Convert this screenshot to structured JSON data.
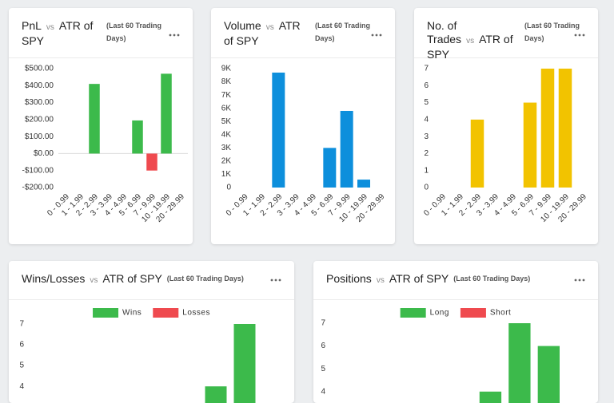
{
  "chart_data": [
    {
      "type": "bar",
      "title": "PnL",
      "vs": "vs",
      "title2": "ATR of SPY",
      "subtitle": "(Last 60 Trading Days)",
      "categories": [
        "0 - 0.99",
        "1 - 1.99",
        "2 - 2.99",
        "3 - 3.99",
        "4 - 4.99",
        "5 - 6.99",
        "7 - 9.99",
        "10 - 19.99",
        "20 - 29.99"
      ],
      "values": [
        0,
        0,
        410,
        0,
        0,
        195,
        -100,
        470,
        0
      ],
      "color": "#3cba4b",
      "negative_color": "#ef4a4f",
      "ylim": [
        -200,
        500
      ],
      "yticks": [
        {
          "value": 500,
          "label": "$500.00"
        },
        {
          "value": 400,
          "label": "$400.00"
        },
        {
          "value": 300,
          "label": "$300.00"
        },
        {
          "value": 200,
          "label": "$200.00"
        },
        {
          "value": 100,
          "label": "$100.00"
        },
        {
          "value": 0,
          "label": "$0.00"
        },
        {
          "value": -100,
          "label": "-$100.00"
        },
        {
          "value": -200,
          "label": "-$200.00"
        }
      ],
      "zero_line": true
    },
    {
      "type": "bar",
      "title": "Volume",
      "vs": "vs",
      "title2": "ATR of SPY",
      "subtitle": "(Last 60 Trading Days)",
      "categories": [
        "0 - 0.99",
        "1 - 1.99",
        "2 - 2.99",
        "3 - 3.99",
        "4 - 4.99",
        "5 - 6.99",
        "7 - 9.99",
        "10 - 19.99",
        "20 - 29.99"
      ],
      "values": [
        0,
        0,
        8700,
        0,
        0,
        3000,
        5800,
        600,
        0
      ],
      "color": "#0d8fdc",
      "ylim": [
        0,
        9000
      ],
      "yticks": [
        {
          "value": 9000,
          "label": "9K"
        },
        {
          "value": 8000,
          "label": "8K"
        },
        {
          "value": 7000,
          "label": "7K"
        },
        {
          "value": 6000,
          "label": "6K"
        },
        {
          "value": 5000,
          "label": "5K"
        },
        {
          "value": 4000,
          "label": "4K"
        },
        {
          "value": 3000,
          "label": "3K"
        },
        {
          "value": 2000,
          "label": "2K"
        },
        {
          "value": 1000,
          "label": "1K"
        },
        0
      ]
    },
    {
      "type": "bar",
      "title": "No. of Trades",
      "vs": "vs",
      "title2": "ATR of SPY",
      "subtitle": "(Last 60 Trading Days)",
      "categories": [
        "0 - 0.99",
        "1 - 1.99",
        "2 - 2.99",
        "3 - 3.99",
        "4 - 4.99",
        "5 - 6.99",
        "7 - 9.99",
        "10 - 19.99",
        "20 - 29.99"
      ],
      "values": [
        0,
        0,
        4,
        0,
        0,
        5,
        7,
        7,
        0
      ],
      "color": "#f2c300",
      "ylim": [
        0,
        7
      ],
      "yticks": [
        7,
        6,
        5,
        4,
        3,
        2,
        1,
        0
      ]
    },
    {
      "type": "bar",
      "title": "Wins/Losses",
      "vs": "vs",
      "title2": "ATR of SPY",
      "subtitle": "(Last 60 Trading Days)",
      "categories": [
        null,
        null,
        null,
        null,
        null,
        null,
        null,
        null,
        null
      ],
      "series": [
        {
          "name": "Wins",
          "color": "#3cba4b",
          "values": [
            null,
            null,
            null,
            null,
            null,
            null,
            4,
            7,
            null
          ]
        },
        {
          "name": "Losses",
          "color": "#ef4a4f",
          "values": [
            null,
            null,
            null,
            null,
            null,
            null,
            null,
            null,
            null
          ]
        }
      ],
      "ylim": [
        3.2,
        7
      ],
      "yticks": [
        7,
        6,
        5,
        4
      ],
      "legend": "top"
    },
    {
      "type": "bar",
      "title": "Positions",
      "vs": "vs",
      "title2": "ATR of SPY",
      "subtitle": "(Last 60 Trading Days)",
      "categories": [
        null,
        null,
        null,
        null,
        null,
        null,
        null,
        null,
        null
      ],
      "series": [
        {
          "name": "Long",
          "color": "#3cba4b",
          "values": [
            null,
            null,
            null,
            null,
            null,
            4,
            7,
            6,
            null
          ]
        },
        {
          "name": "Short",
          "color": "#ef4a4f",
          "values": [
            null,
            null,
            null,
            null,
            null,
            null,
            null,
            null,
            null
          ]
        }
      ],
      "ylim": [
        3.5,
        7
      ],
      "yticks": [
        7,
        6,
        5,
        4
      ],
      "legend": "top"
    }
  ]
}
